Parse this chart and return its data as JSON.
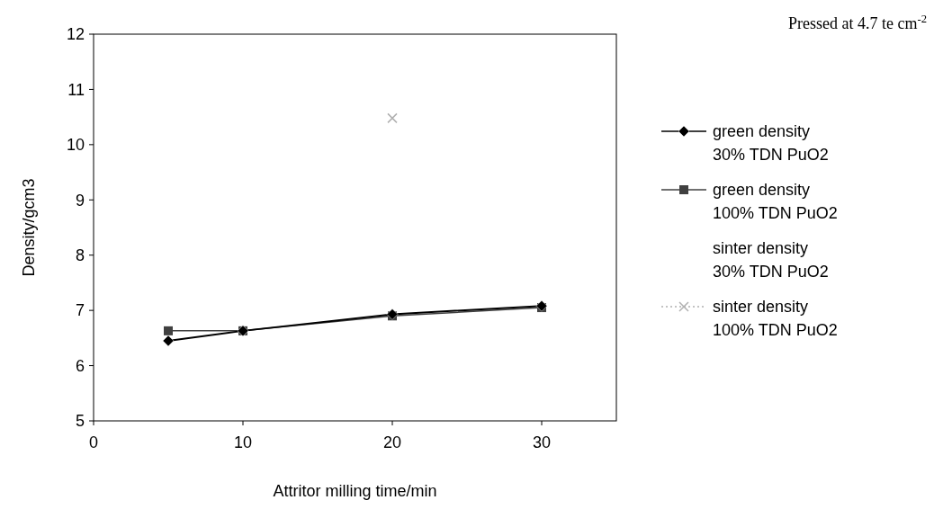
{
  "chart_data": {
    "type": "line",
    "xlabel": "Attritor milling time/min",
    "ylabel": "Density/gcm3",
    "xlim": [
      0,
      35
    ],
    "xticks": [
      0,
      10,
      20,
      30
    ],
    "ylim": [
      5,
      12
    ],
    "yticks": [
      5,
      6,
      7,
      8,
      9,
      10,
      11,
      12
    ],
    "grid": false,
    "legend": "right",
    "annotations": [
      "Pressed at 4.7 te cm$^{-2}$"
    ],
    "series": [
      {
        "name": "green density 30% TDN PuO2",
        "color": "#000000",
        "marker": "diamond",
        "line_style": "solid",
        "x": [
          5,
          10,
          20,
          30
        ],
        "values": [
          6.45,
          6.63,
          6.93,
          7.08
        ]
      },
      {
        "name": "green density 100% TDN PuO2",
        "color": "#404040",
        "marker": "square",
        "line_style": "solid",
        "x": [
          5,
          10,
          20,
          30
        ],
        "values": [
          6.63,
          6.63,
          6.9,
          7.05
        ]
      },
      {
        "name": "sinter density 30% TDN PuO2",
        "marker": "none"
      },
      {
        "name": "sinter density 100% TDN PuO2",
        "color": "#b0b0b0",
        "marker": "cross",
        "line_style": "dotted",
        "x": [
          20
        ],
        "values": [
          10.48
        ]
      }
    ]
  }
}
